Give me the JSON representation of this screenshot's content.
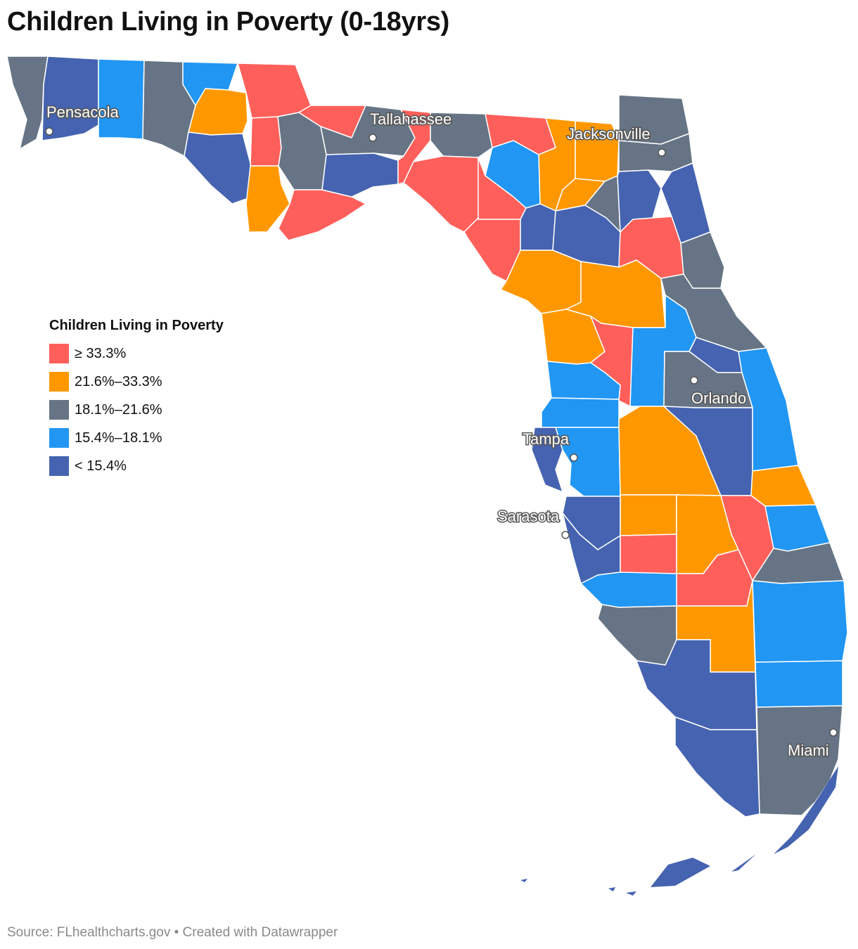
{
  "title": "Children Living in Poverty (0-18yrs)",
  "legend": {
    "title": "Children Living in Poverty",
    "items": [
      {
        "label": "≥ 33.3%",
        "color": "#ff5f5a"
      },
      {
        "label": "21.6%–33.3%",
        "color": "#ff9800"
      },
      {
        "label": "18.1%–21.6%",
        "color": "#667485"
      },
      {
        "label": "15.4%–18.1%",
        "color": "#2196f3"
      },
      {
        "label": "< 15.4%",
        "color": "#4563b0"
      }
    ]
  },
  "cities": [
    {
      "name": "Pensacola"
    },
    {
      "name": "Tallahassee"
    },
    {
      "name": "Jacksonville"
    },
    {
      "name": "Orlando"
    },
    {
      "name": "Tampa"
    },
    {
      "name": "Sarasota"
    },
    {
      "name": "Miami"
    }
  ],
  "source": "Source: FLhealthcharts.gov • Created with Datawrapper"
}
